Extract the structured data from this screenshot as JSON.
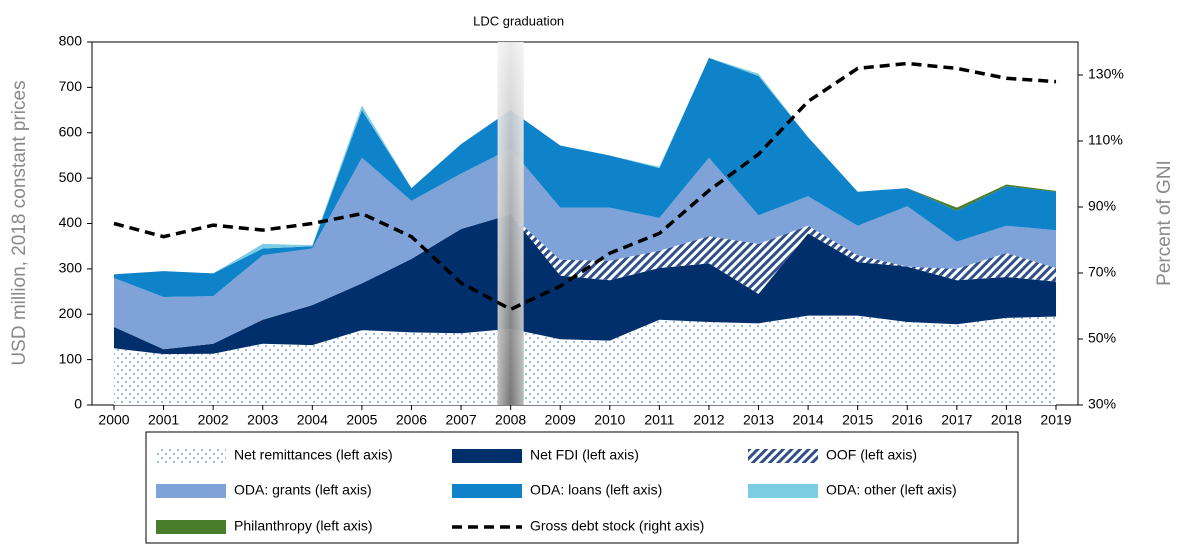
{
  "chart_data": {
    "type": "area",
    "annotation": {
      "text": "LDC graduation",
      "x": "2008"
    },
    "ylabel": "USD million, 2018 constant prices",
    "y2label": "Percent of GNI",
    "categories": [
      "2000",
      "2001",
      "2002",
      "2003",
      "2004",
      "2005",
      "2006",
      "2007",
      "2008",
      "2009",
      "2010",
      "2011",
      "2012",
      "2013",
      "2014",
      "2015",
      "2016",
      "2017",
      "2018",
      "2019"
    ],
    "ylim": [
      0,
      800
    ],
    "yticks": [
      0,
      100,
      200,
      300,
      400,
      500,
      600,
      700,
      800
    ],
    "y2lim": [
      30,
      140
    ],
    "y2ticks": [
      {
        "value": 30,
        "label": "30%"
      },
      {
        "value": 50,
        "label": "50%"
      },
      {
        "value": 70,
        "label": "70%"
      },
      {
        "value": 90,
        "label": "90%"
      },
      {
        "value": 110,
        "label": "110%"
      },
      {
        "value": 130,
        "label": "130%"
      }
    ],
    "series": [
      {
        "name": "Net remittances (left axis)",
        "color": "#8fb3e0",
        "pattern": "dots",
        "values": [
          125,
          112,
          113,
          135,
          132,
          165,
          160,
          158,
          168,
          145,
          142,
          188,
          183,
          180,
          197,
          197,
          183,
          178,
          192,
          195
        ]
      },
      {
        "name": "Net FDI (left axis)",
        "color": "#002f6c",
        "values": [
          47,
          11,
          22,
          53,
          88,
          103,
          162,
          230,
          252,
          140,
          133,
          114,
          129,
          65,
          181,
          118,
          122,
          97,
          90,
          77
        ]
      },
      {
        "name": "OOF (left axis)",
        "color": "#2e4f8a",
        "pattern": "hatch",
        "values": [
          0,
          0,
          0,
          0,
          0,
          0,
          0,
          0,
          0,
          35,
          43,
          38,
          60,
          110,
          17,
          15,
          0,
          25,
          53,
          30
        ]
      },
      {
        "name": "ODA: grants (left axis)",
        "color": "#7fa3d9",
        "values": [
          108,
          115,
          105,
          142,
          125,
          277,
          128,
          122,
          145,
          115,
          117,
          72,
          173,
          63,
          65,
          65,
          133,
          60,
          60,
          83
        ]
      },
      {
        "name": "ODA: loans (left axis)",
        "color": "#0f83c9",
        "values": [
          8,
          57,
          50,
          15,
          5,
          105,
          28,
          65,
          85,
          137,
          115,
          110,
          220,
          307,
          130,
          75,
          40,
          68,
          87,
          85
        ]
      },
      {
        "name": "ODA: other (left axis)",
        "color": "#7ccde4",
        "values": [
          0,
          0,
          0,
          10,
          2,
          10,
          0,
          0,
          0,
          0,
          0,
          3,
          0,
          5,
          0,
          0,
          0,
          0,
          0,
          0
        ]
      },
      {
        "name": "Philanthropy (left axis)",
        "color": "#4a7d2a",
        "values": [
          0,
          0,
          0,
          0,
          0,
          0,
          0,
          0,
          0,
          0,
          0,
          0,
          0,
          0,
          0,
          0,
          0,
          7,
          4,
          2
        ]
      },
      {
        "name": "Gross debt stock (right axis)",
        "color": "#000000",
        "axis": "y2",
        "dash": true,
        "values": [
          85,
          81,
          84.5,
          83,
          85,
          88,
          81,
          67,
          59,
          66,
          76,
          82,
          95,
          106,
          122,
          132,
          133.5,
          132,
          129,
          128
        ]
      }
    ]
  }
}
